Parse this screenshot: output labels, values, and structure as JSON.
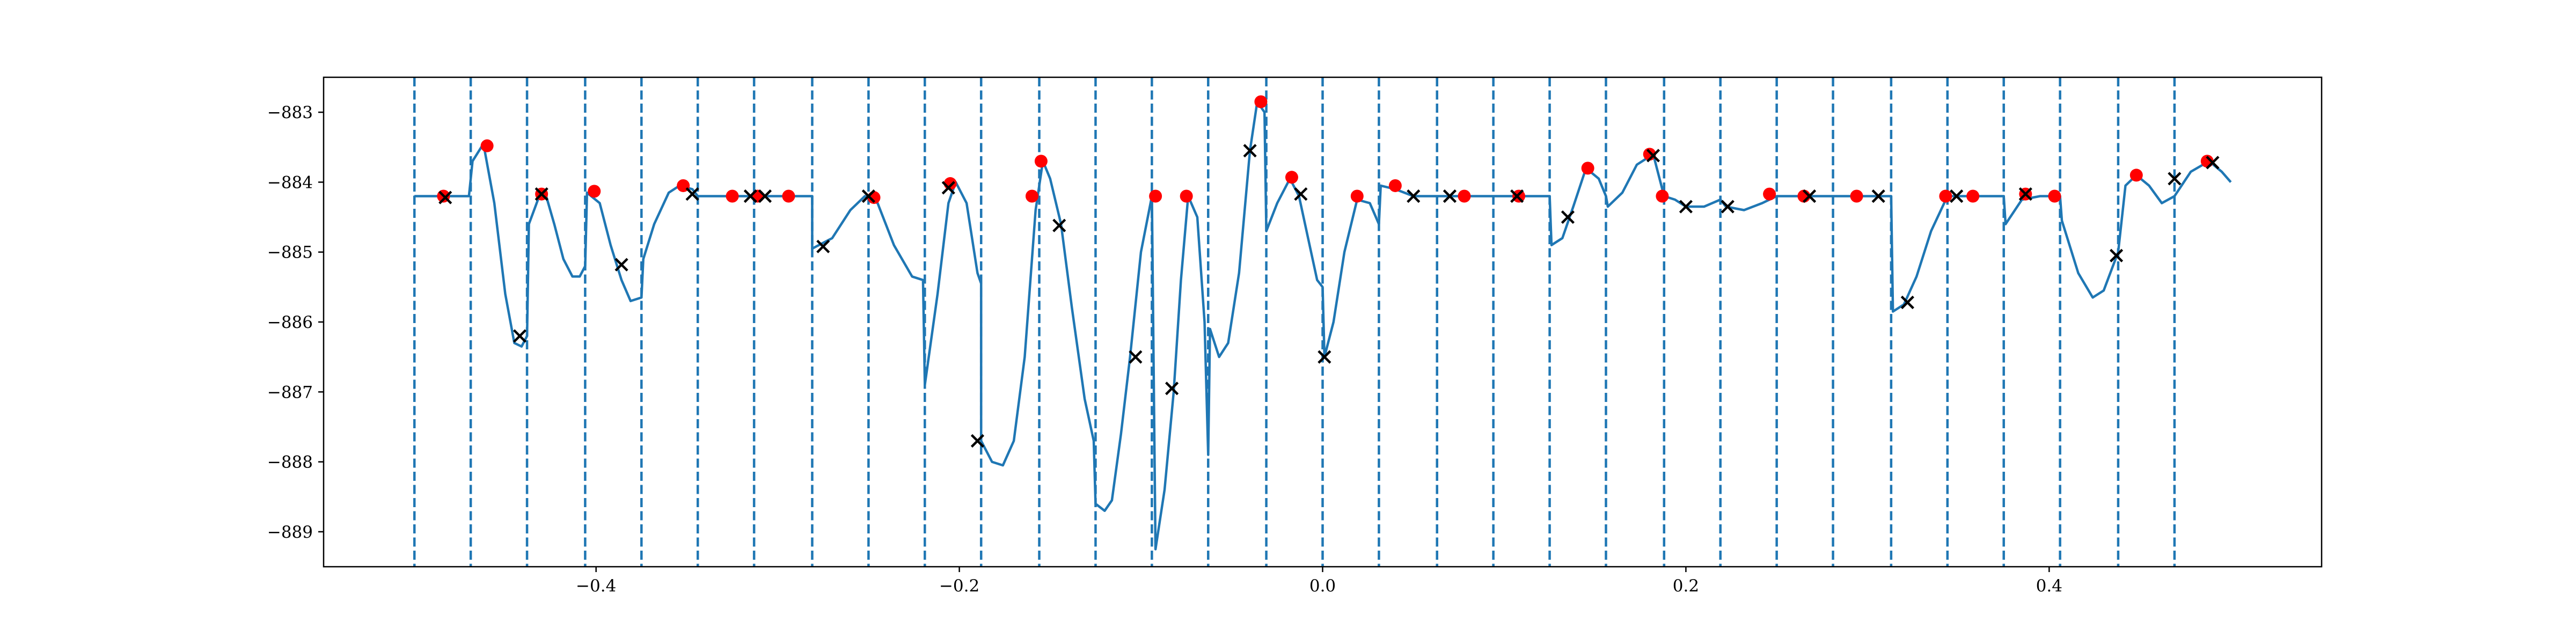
{
  "chart_data": {
    "type": "line",
    "title": "",
    "xlabel": "",
    "ylabel": "",
    "xlim": [
      -0.55,
      0.55
    ],
    "ylim": [
      -889.5,
      -882.5
    ],
    "xticks": [
      -0.4,
      -0.2,
      0.0,
      0.2,
      0.4
    ],
    "xtick_labels": [
      "−0.4",
      "−0.2",
      "0.0",
      "0.2",
      "0.4"
    ],
    "yticks": [
      -883,
      -884,
      -885,
      -886,
      -887,
      -888,
      -889
    ],
    "ytick_labels": [
      "−883",
      "−884",
      "−885",
      "−886",
      "−887",
      "−888",
      "−889"
    ],
    "grid": false,
    "legend": "none",
    "colors": {
      "line": "#1f77b4",
      "vlines": "#1f77b4",
      "dots": "#ff0000",
      "crosses": "#000000"
    },
    "vlines": [
      -0.5,
      -0.469,
      -0.438,
      -0.406,
      -0.375,
      -0.344,
      -0.313,
      -0.281,
      -0.25,
      -0.219,
      -0.188,
      -0.156,
      -0.125,
      -0.094,
      -0.063,
      -0.031,
      0.0,
      0.031,
      0.063,
      0.094,
      0.125,
      0.156,
      0.188,
      0.219,
      0.25,
      0.281,
      0.313,
      0.344,
      0.375,
      0.406,
      0.438,
      0.469
    ],
    "series": [
      {
        "values": [
          [
            -0.5,
            -884.2
          ],
          [
            -0.482,
            -884.2
          ],
          [
            -0.47,
            -884.2
          ],
          [
            -0.468,
            -883.7
          ],
          [
            -0.462,
            -883.45
          ],
          [
            -0.456,
            -884.3
          ],
          [
            -0.45,
            -885.6
          ],
          [
            -0.445,
            -886.3
          ],
          [
            -0.441,
            -886.35
          ],
          [
            -0.438,
            -886.2
          ],
          [
            -0.437,
            -884.6
          ],
          [
            -0.432,
            -884.25
          ],
          [
            -0.428,
            -884.15
          ],
          [
            -0.423,
            -884.6
          ],
          [
            -0.418,
            -885.1
          ],
          [
            -0.413,
            -885.35
          ],
          [
            -0.409,
            -885.35
          ],
          [
            -0.406,
            -885.2
          ],
          [
            -0.405,
            -884.15
          ],
          [
            -0.398,
            -884.3
          ],
          [
            -0.392,
            -884.9
          ],
          [
            -0.386,
            -885.4
          ],
          [
            -0.381,
            -885.7
          ],
          [
            -0.375,
            -885.65
          ],
          [
            -0.374,
            -885.1
          ],
          [
            -0.368,
            -884.6
          ],
          [
            -0.36,
            -884.15
          ],
          [
            -0.354,
            -884.05
          ],
          [
            -0.347,
            -884.1
          ],
          [
            -0.344,
            -884.2
          ],
          [
            -0.3,
            -884.2
          ],
          [
            -0.281,
            -884.2
          ],
          [
            -0.281,
            -884.95
          ],
          [
            -0.27,
            -884.8
          ],
          [
            -0.26,
            -884.4
          ],
          [
            -0.252,
            -884.2
          ],
          [
            -0.245,
            -884.3
          ],
          [
            -0.236,
            -884.9
          ],
          [
            -0.226,
            -885.35
          ],
          [
            -0.22,
            -885.4
          ],
          [
            -0.219,
            -886.9
          ],
          [
            -0.212,
            -885.6
          ],
          [
            -0.206,
            -884.3
          ],
          [
            -0.202,
            -884.0
          ],
          [
            -0.196,
            -884.3
          ],
          [
            -0.19,
            -885.3
          ],
          [
            -0.188,
            -885.45
          ],
          [
            -0.188,
            -887.7
          ],
          [
            -0.182,
            -888.0
          ],
          [
            -0.176,
            -888.05
          ],
          [
            -0.17,
            -887.7
          ],
          [
            -0.164,
            -886.5
          ],
          [
            -0.158,
            -884.4
          ],
          [
            -0.154,
            -883.7
          ],
          [
            -0.15,
            -883.95
          ],
          [
            -0.144,
            -884.6
          ],
          [
            -0.138,
            -885.8
          ],
          [
            -0.131,
            -887.1
          ],
          [
            -0.126,
            -887.7
          ],
          [
            -0.125,
            -888.6
          ],
          [
            -0.12,
            -888.7
          ],
          [
            -0.116,
            -888.55
          ],
          [
            -0.111,
            -887.6
          ],
          [
            -0.106,
            -886.5
          ],
          [
            -0.1,
            -885.0
          ],
          [
            -0.094,
            -884.2
          ],
          [
            -0.092,
            -889.25
          ],
          [
            -0.087,
            -888.4
          ],
          [
            -0.082,
            -887.0
          ],
          [
            -0.078,
            -885.4
          ],
          [
            -0.074,
            -884.2
          ],
          [
            -0.069,
            -884.5
          ],
          [
            -0.065,
            -886.0
          ],
          [
            -0.063,
            -887.9
          ],
          [
            -0.062,
            -886.1
          ],
          [
            -0.057,
            -886.5
          ],
          [
            -0.052,
            -886.3
          ],
          [
            -0.046,
            -885.3
          ],
          [
            -0.04,
            -883.55
          ],
          [
            -0.036,
            -882.85
          ],
          [
            -0.032,
            -883.0
          ],
          [
            -0.031,
            -884.7
          ],
          [
            -0.025,
            -884.3
          ],
          [
            -0.018,
            -883.95
          ],
          [
            -0.013,
            -884.2
          ],
          [
            -0.008,
            -884.8
          ],
          [
            -0.003,
            -885.4
          ],
          [
            0.0,
            -885.5
          ],
          [
            0.001,
            -886.5
          ],
          [
            0.006,
            -886.0
          ],
          [
            0.012,
            -885.0
          ],
          [
            0.019,
            -884.25
          ],
          [
            0.026,
            -884.3
          ],
          [
            0.031,
            -884.6
          ],
          [
            0.032,
            -884.05
          ],
          [
            0.04,
            -884.1
          ],
          [
            0.05,
            -884.2
          ],
          [
            0.063,
            -884.2
          ],
          [
            0.094,
            -884.2
          ],
          [
            0.125,
            -884.2
          ],
          [
            0.126,
            -884.9
          ],
          [
            0.132,
            -884.8
          ],
          [
            0.138,
            -884.35
          ],
          [
            0.145,
            -883.8
          ],
          [
            0.152,
            -883.95
          ],
          [
            0.156,
            -884.2
          ],
          [
            0.157,
            -884.35
          ],
          [
            0.165,
            -884.15
          ],
          [
            0.173,
            -883.75
          ],
          [
            0.182,
            -883.6
          ],
          [
            0.188,
            -884.2
          ],
          [
            0.194,
            -884.25
          ],
          [
            0.2,
            -884.35
          ],
          [
            0.21,
            -884.35
          ],
          [
            0.219,
            -884.25
          ],
          [
            0.222,
            -884.35
          ],
          [
            0.232,
            -884.4
          ],
          [
            0.242,
            -884.3
          ],
          [
            0.25,
            -884.2
          ],
          [
            0.281,
            -884.2
          ],
          [
            0.313,
            -884.2
          ],
          [
            0.314,
            -885.85
          ],
          [
            0.32,
            -885.75
          ],
          [
            0.327,
            -885.35
          ],
          [
            0.335,
            -884.7
          ],
          [
            0.344,
            -884.2
          ],
          [
            0.375,
            -884.2
          ],
          [
            0.376,
            -884.6
          ],
          [
            0.385,
            -884.25
          ],
          [
            0.395,
            -884.2
          ],
          [
            0.406,
            -884.2
          ],
          [
            0.407,
            -884.55
          ],
          [
            0.416,
            -885.3
          ],
          [
            0.424,
            -885.65
          ],
          [
            0.43,
            -885.55
          ],
          [
            0.438,
            -885.0
          ],
          [
            0.442,
            -884.05
          ],
          [
            0.448,
            -883.9
          ],
          [
            0.455,
            -884.05
          ],
          [
            0.462,
            -884.3
          ],
          [
            0.469,
            -884.2
          ],
          [
            0.478,
            -883.85
          ],
          [
            0.488,
            -883.7
          ],
          [
            0.495,
            -883.85
          ],
          [
            0.5,
            -884.0
          ]
        ]
      },
      {
        "type": "scatter",
        "marker": "dot",
        "values": [
          [
            -0.484,
            -884.2
          ],
          [
            -0.46,
            -883.48
          ],
          [
            -0.43,
            -884.17
          ],
          [
            -0.401,
            -884.13
          ],
          [
            -0.352,
            -884.05
          ],
          [
            -0.325,
            -884.2
          ],
          [
            -0.311,
            -884.2
          ],
          [
            -0.294,
            -884.2
          ],
          [
            -0.247,
            -884.22
          ],
          [
            -0.205,
            -884.02
          ],
          [
            -0.16,
            -884.2
          ],
          [
            -0.155,
            -883.7
          ],
          [
            -0.092,
            -884.2
          ],
          [
            -0.075,
            -884.2
          ],
          [
            -0.034,
            -882.85
          ],
          [
            -0.017,
            -883.93
          ],
          [
            0.019,
            -884.2
          ],
          [
            0.04,
            -884.05
          ],
          [
            0.078,
            -884.2
          ],
          [
            0.108,
            -884.2
          ],
          [
            0.146,
            -883.8
          ],
          [
            0.18,
            -883.6
          ],
          [
            0.187,
            -884.2
          ],
          [
            0.246,
            -884.17
          ],
          [
            0.265,
            -884.2
          ],
          [
            0.294,
            -884.2
          ],
          [
            0.343,
            -884.2
          ],
          [
            0.358,
            -884.2
          ],
          [
            0.387,
            -884.17
          ],
          [
            0.403,
            -884.2
          ],
          [
            0.448,
            -883.9
          ],
          [
            0.487,
            -883.7
          ]
        ]
      },
      {
        "type": "scatter",
        "marker": "x",
        "values": [
          [
            -0.483,
            -884.22
          ],
          [
            -0.442,
            -886.2
          ],
          [
            -0.43,
            -884.17
          ],
          [
            -0.386,
            -885.18
          ],
          [
            -0.347,
            -884.17
          ],
          [
            -0.315,
            -884.2
          ],
          [
            -0.307,
            -884.2
          ],
          [
            -0.275,
            -884.92
          ],
          [
            -0.25,
            -884.2
          ],
          [
            -0.206,
            -884.08
          ],
          [
            -0.19,
            -887.7
          ],
          [
            -0.145,
            -884.62
          ],
          [
            -0.103,
            -886.5
          ],
          [
            -0.083,
            -886.95
          ],
          [
            -0.04,
            -883.55
          ],
          [
            -0.012,
            -884.17
          ],
          [
            0.001,
            -886.5
          ],
          [
            0.05,
            -884.2
          ],
          [
            0.07,
            -884.2
          ],
          [
            0.107,
            -884.2
          ],
          [
            0.135,
            -884.5
          ],
          [
            0.182,
            -883.62
          ],
          [
            0.2,
            -884.35
          ],
          [
            0.223,
            -884.35
          ],
          [
            0.268,
            -884.2
          ],
          [
            0.306,
            -884.2
          ],
          [
            0.322,
            -885.72
          ],
          [
            0.349,
            -884.2
          ],
          [
            0.387,
            -884.17
          ],
          [
            0.437,
            -885.05
          ],
          [
            0.469,
            -883.95
          ],
          [
            0.49,
            -883.72
          ]
        ]
      }
    ]
  }
}
